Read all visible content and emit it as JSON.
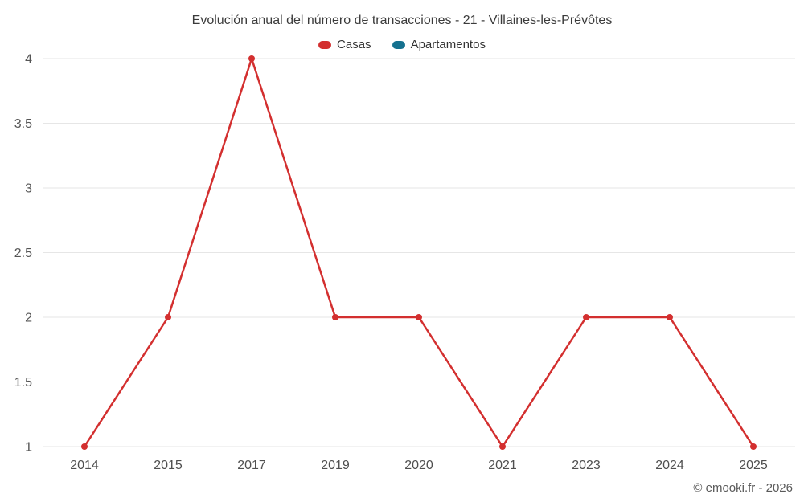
{
  "chart": {
    "title": "Evolución anual del número de transacciones - 21 - Villaines-les-Prévôtes",
    "credits": "© emooki.fr - 2026"
  },
  "legend": {
    "items": [
      {
        "label": "Casas",
        "color": "#d32f2f"
      },
      {
        "label": "Apartamentos",
        "color": "#15718f"
      }
    ]
  },
  "chart_data": {
    "type": "line",
    "title": "Evolución anual del número de transacciones - 21 - Villaines-les-Prévôtes",
    "categories": [
      "2014",
      "2015",
      "2017",
      "2019",
      "2020",
      "2021",
      "2023",
      "2024",
      "2025"
    ],
    "series": [
      {
        "name": "Casas",
        "color": "#d32f2f",
        "values": [
          1,
          2,
          4,
          2,
          2,
          1,
          2,
          2,
          1
        ]
      },
      {
        "name": "Apartamentos",
        "color": "#15718f",
        "values": []
      }
    ],
    "xlabel": "",
    "ylabel": "",
    "ylim": [
      1,
      4
    ],
    "y_ticks": [
      1,
      1.5,
      2,
      2.5,
      3,
      3.5,
      4
    ],
    "grid": true,
    "legend_position": "top",
    "colors": {
      "gridline": "#e6e6e6",
      "axis_line": "#d8d8d8",
      "tick_text": "#4f4f4f"
    }
  }
}
